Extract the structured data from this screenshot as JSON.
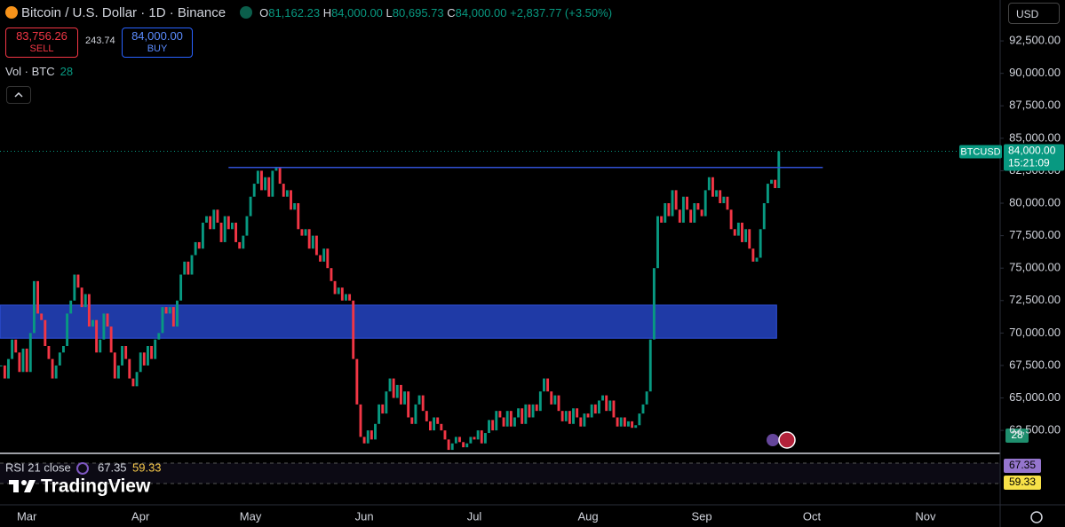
{
  "header": {
    "symbol_title": "Bitcoin / U.S. Dollar · 1D · Binance",
    "ohlc": [
      {
        "label": "O",
        "value": "81,162.23"
      },
      {
        "label": "H",
        "value": "84,000.00"
      },
      {
        "label": "L",
        "value": "80,695.73"
      },
      {
        "label": "C",
        "value": "84,000.00"
      }
    ],
    "change": "+2,837.77 (+3.50%)"
  },
  "trade": {
    "sell_price": "83,756.26",
    "sell_label": "SELL",
    "spread": "243.74",
    "buy_price": "84,000.00",
    "buy_label": "BUY"
  },
  "volume_legend": {
    "label": "Vol · BTC",
    "value": "28"
  },
  "currency": "USD",
  "rsi_legend": {
    "label": "RSI 21 close",
    "rsi": "67.35",
    "rsi_ma": "59.33"
  },
  "branding": "TradingView",
  "chart_data": {
    "type": "candlestick",
    "closes": [
      67500,
      66500,
      68000,
      69500,
      68500,
      67000,
      68800,
      67000,
      70000,
      74000,
      71500,
      71000,
      69000,
      68000,
      66500,
      67500,
      68500,
      69000,
      71500,
      72500,
      74500,
      73500,
      72000,
      73000,
      70500,
      71000,
      68500,
      69500,
      71500,
      70500,
      68500,
      66500,
      67500,
      69000,
      68000,
      66500,
      65900,
      67000,
      68500,
      67500,
      69000,
      68000,
      69500,
      70000,
      72000,
      71500,
      72000,
      70500,
      72500,
      74500,
      75500,
      74500,
      76000,
      77000,
      76500,
      78500,
      79000,
      78000,
      79500,
      78500,
      77000,
      79000,
      78000,
      78500,
      77000,
      76500,
      77500,
      79000,
      80500,
      81500,
      82500,
      81000,
      82000,
      80500,
      82500,
      82800,
      81500,
      80500,
      81000,
      79500,
      80000,
      78000,
      77500,
      78000,
      76500,
      77500,
      76000,
      75500,
      76500,
      75000,
      74000,
      73000,
      73500,
      72500,
      73000,
      72500,
      68000,
      64500,
      62000,
      61500,
      62500,
      61800,
      63000,
      64500,
      63800,
      65500,
      66500,
      65000,
      66000,
      64500,
      65500,
      63500,
      63000,
      64500,
      65200,
      64000,
      63200,
      62500,
      63500,
      63000,
      62500,
      61800,
      61000,
      61500,
      62000,
      61600,
      61200,
      61500,
      62000,
      61800,
      62500,
      61500,
      62300,
      63300,
      62500,
      64000,
      63500,
      62800,
      64000,
      62800,
      63500,
      64200,
      63000,
      64500,
      63500,
      64500,
      64000,
      65500,
      66500,
      65500,
      64500,
      65200,
      64000,
      63200,
      64000,
      63000,
      64200,
      63500,
      62800,
      63800,
      63500,
      64500,
      63800,
      64800,
      65200,
      64000,
      64800,
      63500,
      62800,
      63500,
      62800,
      63200,
      62700,
      62900,
      63800,
      64500,
      65500,
      69500,
      75000,
      79000,
      78500,
      80000,
      79000,
      81000,
      79500,
      78500,
      80500,
      79500,
      78500,
      80000,
      79500,
      79000,
      81000,
      82000,
      80500,
      81000,
      80000,
      80500,
      79500,
      78000,
      77500,
      78500,
      77000,
      78000,
      76500,
      75500,
      75800,
      78000,
      80000,
      81500,
      81800,
      81162,
      84000
    ],
    "up_color": "#089981",
    "down_color": "#f23645",
    "ylim": [
      60800,
      95650
    ],
    "yticks": [
      {
        "value": 62500,
        "label": "62,500.00"
      },
      {
        "value": 65000,
        "label": "65,000.00"
      },
      {
        "value": 67500,
        "label": "67,500.00"
      },
      {
        "value": 70000,
        "label": "70,000.00"
      },
      {
        "value": 72500,
        "label": "72,500.00"
      },
      {
        "value": 75000,
        "label": "75,000.00"
      },
      {
        "value": 77500,
        "label": "77,500.00"
      },
      {
        "value": 80000,
        "label": "80,000.00"
      },
      {
        "value": 82500,
        "label": "82,500.00"
      },
      {
        "value": 85000,
        "label": "85,000.00"
      },
      {
        "value": 87500,
        "label": "87,500.00"
      },
      {
        "value": 90000,
        "label": "90,000.00"
      },
      {
        "value": 92500,
        "label": "92,500.00"
      }
    ],
    "xlim": [
      -7.3,
      265.1
    ],
    "xticks": [
      {
        "value": 0,
        "label": "Mar"
      },
      {
        "value": 31,
        "label": "Apr"
      },
      {
        "value": 61,
        "label": "May"
      },
      {
        "value": 92,
        "label": "Jun"
      },
      {
        "value": 122,
        "label": "Jul"
      },
      {
        "value": 153,
        "label": "Aug"
      },
      {
        "value": 184,
        "label": "Sep"
      },
      {
        "value": 214,
        "label": "Oct"
      },
      {
        "value": 245,
        "label": "Nov"
      }
    ],
    "symbol": "BTCUSD",
    "last_price": {
      "value": 84000,
      "label": "84,000.00"
    },
    "countdown": "15:21:09",
    "resistance_line": {
      "value": 82750,
      "from": 55,
      "to": 217,
      "color": "#3151d6"
    },
    "zone": {
      "low": 69600,
      "high": 72150,
      "from": -7.3,
      "to": 204.4,
      "color": "#1f3aa6"
    }
  }
}
